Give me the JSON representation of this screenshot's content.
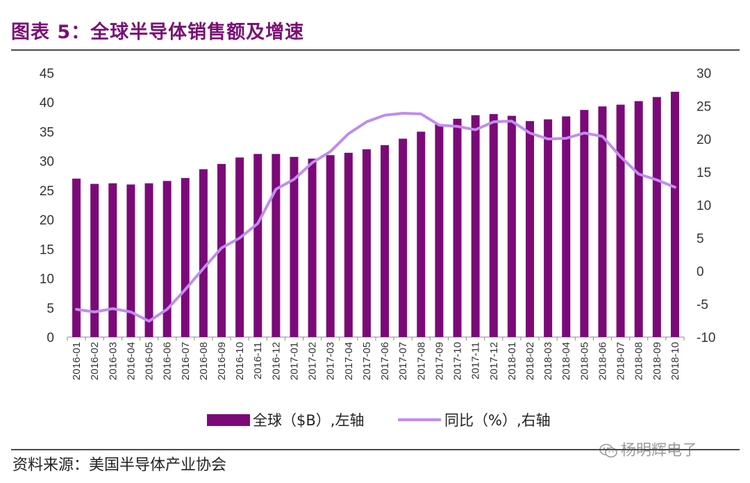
{
  "header": {
    "title": "图表 5：全球半导体销售额及增速"
  },
  "footer": {
    "source": "资料来源：美国半导体产业协会",
    "watermark": "杨明辉电子"
  },
  "colors": {
    "bar": "#7b0a78",
    "line": "#c08cf0",
    "title": "#7a0f74"
  },
  "chart_data": {
    "type": "bar",
    "categories": [
      "2016-01",
      "2016-02",
      "2016-03",
      "2016-04",
      "2016-05",
      "2016-06",
      "2016-07",
      "2016-08",
      "2016-09",
      "2016-10",
      "2016-11",
      "2016-12",
      "2017-01",
      "2017-02",
      "2017-03",
      "2017-04",
      "2017-05",
      "2017-06",
      "2017-07",
      "2017-08",
      "2017-09",
      "2017-10",
      "2017-11",
      "2017-12",
      "2018-01",
      "2018-02",
      "2018-03",
      "2018-04",
      "2018-05",
      "2018-06",
      "2018-07",
      "2018-08",
      "2018-09",
      "2018-10"
    ],
    "series": [
      {
        "name": "全球（$B）,左轴",
        "type": "bar",
        "axis": "left",
        "values": [
          27.0,
          26.1,
          26.2,
          26.0,
          26.2,
          26.6,
          27.1,
          28.6,
          29.5,
          30.6,
          31.2,
          31.2,
          30.7,
          30.4,
          31.0,
          31.4,
          32.0,
          32.7,
          33.8,
          35.0,
          36.3,
          37.2,
          37.8,
          38.0,
          37.7,
          36.8,
          37.1,
          37.6,
          38.7,
          39.3,
          39.6,
          40.2,
          40.9,
          41.8
        ]
      },
      {
        "name": "同比（%）,右轴",
        "type": "line",
        "axis": "right",
        "values": [
          -5.8,
          -6.2,
          -5.7,
          -6.2,
          -7.6,
          -5.8,
          -2.8,
          0.4,
          3.5,
          5.0,
          7.2,
          12.4,
          13.9,
          16.4,
          18.1,
          20.8,
          22.6,
          23.6,
          23.9,
          23.8,
          22.1,
          21.9,
          21.4,
          22.6,
          22.7,
          20.9,
          20.0,
          20.1,
          20.9,
          20.4,
          17.3,
          14.7,
          13.8,
          12.7
        ]
      }
    ],
    "yleft": {
      "ticks": [
        "0",
        "5",
        "10",
        "15",
        "20",
        "25",
        "30",
        "35",
        "40",
        "45"
      ],
      "lim": [
        0,
        45
      ]
    },
    "yright": {
      "ticks": [
        "-10",
        "-5",
        "0",
        "5",
        "10",
        "15",
        "20",
        "25",
        "30"
      ],
      "lim": [
        -10,
        30
      ]
    },
    "legend": "bottom-center",
    "grid": false
  }
}
